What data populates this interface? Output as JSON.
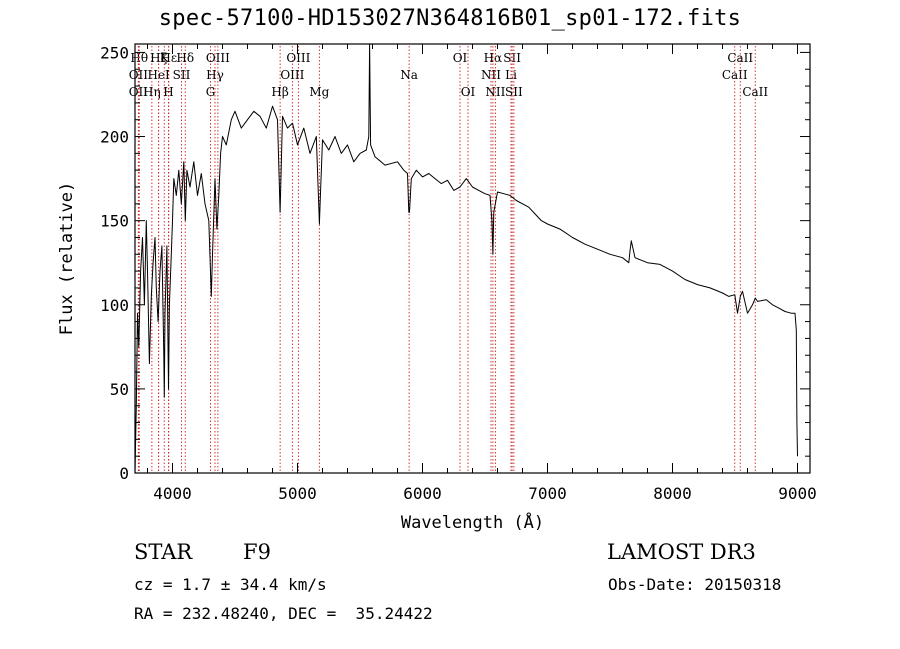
{
  "chart_data": {
    "type": "line",
    "title": "spec-57100-HD153027N364816B01_sp01-172.fits",
    "xlabel": "Wavelength (Å)",
    "ylabel": "Flux (relative)",
    "xlim": [
      3700,
      9100
    ],
    "ylim": [
      0,
      255
    ],
    "xticks": [
      4000,
      5000,
      6000,
      7000,
      8000,
      9000
    ],
    "yticks": [
      0,
      50,
      100,
      150,
      200,
      250
    ],
    "grid": false,
    "series": [
      {
        "name": "spectrum",
        "x": [
          3700,
          3710,
          3720,
          3730,
          3745,
          3760,
          3775,
          3790,
          3800,
          3815,
          3830,
          3845,
          3860,
          3870,
          3885,
          3900,
          3915,
          3930,
          3934,
          3940,
          3955,
          3968,
          3975,
          3990,
          4000,
          4010,
          4030,
          4050,
          4070,
          4090,
          4102,
          4115,
          4140,
          4170,
          4200,
          4230,
          4260,
          4290,
          4310,
          4320,
          4340,
          4355,
          4370,
          4385,
          4400,
          4430,
          4470,
          4500,
          4550,
          4600,
          4650,
          4700,
          4750,
          4800,
          4840,
          4861,
          4880,
          4920,
          4960,
          5000,
          5050,
          5100,
          5150,
          5167,
          5175,
          5183,
          5200,
          5250,
          5300,
          5350,
          5400,
          5450,
          5500,
          5550,
          5570,
          5577,
          5585,
          5620,
          5700,
          5800,
          5850,
          5880,
          5890,
          5896,
          5910,
          5950,
          6000,
          6050,
          6100,
          6150,
          6200,
          6250,
          6300,
          6350,
          6400,
          6450,
          6500,
          6540,
          6555,
          6563,
          6570,
          6600,
          6650,
          6700,
          6750,
          6800,
          6850,
          6900,
          6950,
          7000,
          7100,
          7200,
          7300,
          7400,
          7500,
          7600,
          7650,
          7660,
          7670,
          7700,
          7800,
          7900,
          8000,
          8100,
          8200,
          8300,
          8400,
          8450,
          8498,
          8520,
          8542,
          8560,
          8600,
          8640,
          8662,
          8680,
          8750,
          8800,
          8850,
          8900,
          8950,
          8980,
          8990,
          8995,
          9000
        ],
        "y": [
          0,
          40,
          95,
          75,
          120,
          140,
          100,
          150,
          120,
          65,
          105,
          125,
          140,
          110,
          90,
          120,
          135,
          70,
          45,
          95,
          135,
          50,
          100,
          130,
          150,
          175,
          165,
          180,
          160,
          185,
          150,
          180,
          170,
          185,
          165,
          178,
          160,
          150,
          105,
          130,
          175,
          145,
          165,
          190,
          200,
          195,
          210,
          215,
          205,
          210,
          215,
          212,
          205,
          218,
          210,
          155,
          212,
          205,
          208,
          195,
          205,
          190,
          200,
          165,
          148,
          165,
          198,
          192,
          200,
          190,
          195,
          185,
          190,
          192,
          200,
          255,
          195,
          188,
          183,
          185,
          180,
          178,
          155,
          155,
          175,
          180,
          176,
          178,
          175,
          172,
          174,
          168,
          170,
          175,
          170,
          168,
          166,
          165,
          150,
          130,
          155,
          167,
          166,
          165,
          162,
          160,
          158,
          154,
          150,
          148,
          145,
          140,
          136,
          133,
          130,
          128,
          125,
          132,
          138,
          128,
          125,
          124,
          120,
          115,
          112,
          110,
          107,
          105,
          106,
          95,
          105,
          108,
          95,
          100,
          104,
          102,
          103,
          100,
          98,
          96,
          95,
          95,
          85,
          30,
          10
        ]
      }
    ],
    "line_markers": [
      {
        "x": 3734,
        "label": "Hθ",
        "row": 0
      },
      {
        "x": 3727,
        "label": "OII",
        "row": 1
      },
      {
        "x": 3727,
        "label": "OII",
        "row": 2
      },
      {
        "x": 3835,
        "label": "Hη",
        "row": 2
      },
      {
        "x": 3889,
        "label": "HeI",
        "row": 1
      },
      {
        "x": 3889,
        "label": "Hζ",
        "row": 0
      },
      {
        "x": 3934,
        "label": "K",
        "row": 0
      },
      {
        "x": 3968,
        "label": "H",
        "row": 2
      },
      {
        "x": 3970,
        "label": "Hε",
        "row": 0
      },
      {
        "x": 4072,
        "label": "SII",
        "row": 1
      },
      {
        "x": 4102,
        "label": "Hδ",
        "row": 0
      },
      {
        "x": 4304,
        "label": "G",
        "row": 2
      },
      {
        "x": 4340,
        "label": "Hγ",
        "row": 1
      },
      {
        "x": 4363,
        "label": "OIII",
        "row": 0
      },
      {
        "x": 4861,
        "label": "Hβ",
        "row": 2
      },
      {
        "x": 4959,
        "label": "OIII",
        "row": 1
      },
      {
        "x": 5007,
        "label": "OIII",
        "row": 0
      },
      {
        "x": 5175,
        "label": "Mg",
        "row": 2
      },
      {
        "x": 5893,
        "label": "Na",
        "row": 1
      },
      {
        "x": 6300,
        "label": "OI",
        "row": 0
      },
      {
        "x": 6364,
        "label": "OI",
        "row": 2
      },
      {
        "x": 6548,
        "label": "NII",
        "row": 1
      },
      {
        "x": 6563,
        "label": "Hα",
        "row": 0
      },
      {
        "x": 6583,
        "label": "NII",
        "row": 2
      },
      {
        "x": 6708,
        "label": "Li",
        "row": 1
      },
      {
        "x": 6717,
        "label": "SII",
        "row": 0
      },
      {
        "x": 6731,
        "label": "SII",
        "row": 2
      },
      {
        "x": 8498,
        "label": "CaII",
        "row": 1
      },
      {
        "x": 8542,
        "label": "CaII",
        "row": 0
      },
      {
        "x": 8662,
        "label": "CaII",
        "row": 2
      }
    ],
    "annotations": [
      {
        "text": "STAR",
        "style": "big"
      },
      {
        "text": "F9",
        "style": "big"
      },
      {
        "text": "LAMOST DR3",
        "style": "big"
      },
      {
        "text": "cz = 1.7 ± 34.4 km/s",
        "style": "small"
      },
      {
        "text": "Obs-Date: 20150318",
        "style": "small"
      },
      {
        "text": "RA = 232.48240, DEC =  35.24422",
        "style": "small"
      }
    ]
  }
}
